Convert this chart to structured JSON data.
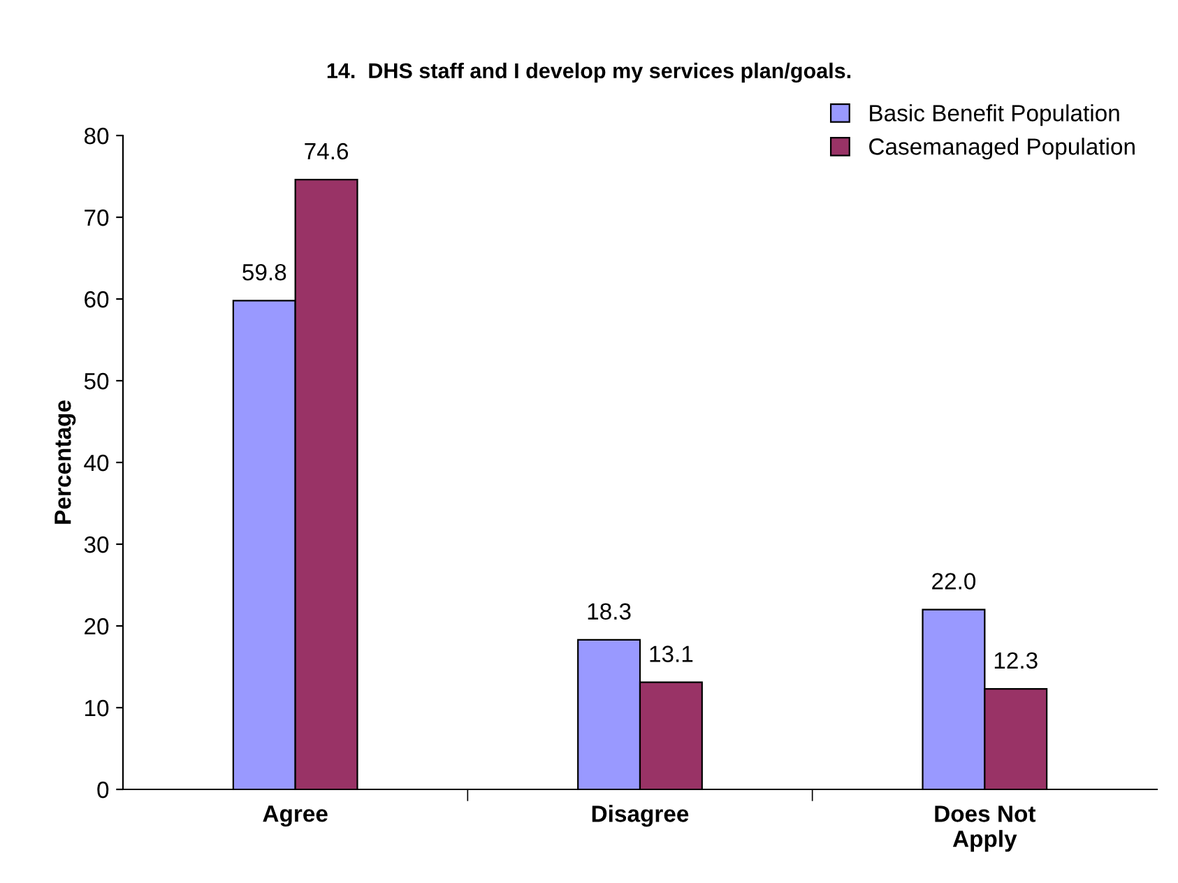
{
  "chart_data": {
    "type": "bar",
    "title": "14.  DHS staff and I develop my services plan/goals.",
    "ylabel": "Percentage",
    "categories": [
      "Agree",
      "Disagree",
      "Does Not\nApply"
    ],
    "series": [
      {
        "name": "Basic Benefit Population",
        "color": "#9999ff",
        "values": [
          59.8,
          18.3,
          22.0
        ],
        "value_labels": [
          "59.8",
          "18.3",
          "22.0"
        ]
      },
      {
        "name": "Casemanaged Population",
        "color": "#993366",
        "values": [
          74.6,
          13.1,
          12.3
        ],
        "value_labels": [
          "74.6",
          "13.1",
          "12.3"
        ]
      }
    ],
    "ylim": [
      0,
      80
    ],
    "yticks": [
      0,
      10,
      20,
      30,
      40,
      50,
      60,
      70,
      80
    ],
    "grid": false,
    "legend": "top right"
  }
}
